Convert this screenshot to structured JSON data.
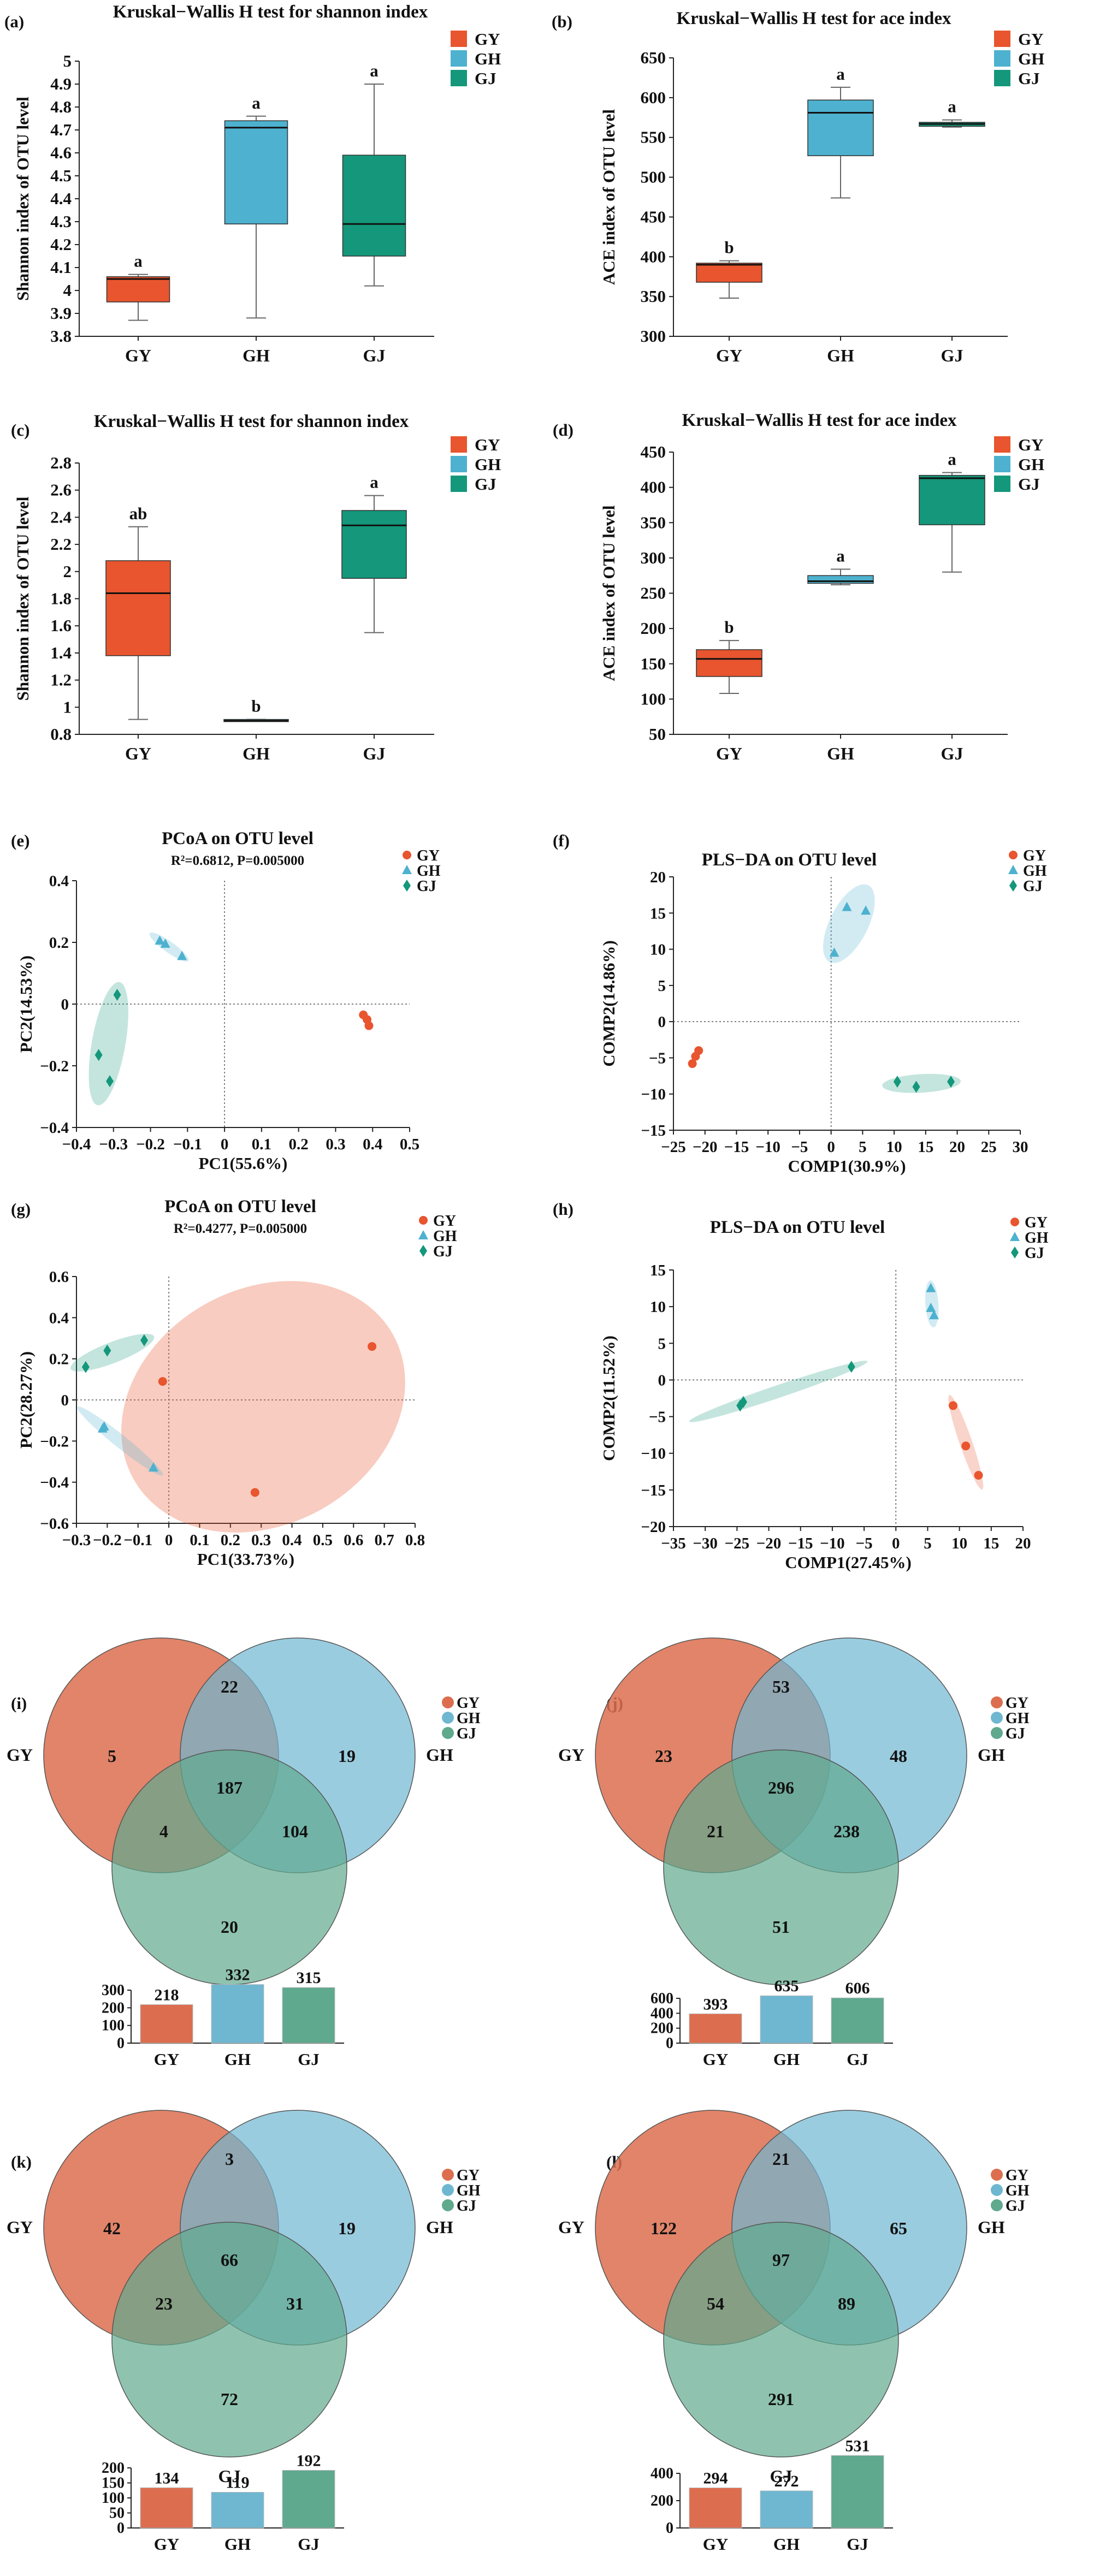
{
  "colors": {
    "GY": "#e8552e",
    "GH": "#4db1cf",
    "GJ": "#14977a"
  },
  "venn_colors": {
    "GY": "#dc6e4f",
    "GH": "#6fb7d1",
    "GJ": "#5fa98e"
  },
  "chart_data": [
    {
      "type": "box",
      "label": "(a)",
      "title": "Kruskal−Wallis H test for shannon index",
      "ylabel": "Shannon index of OTU level",
      "ylim": [
        3.8,
        5
      ],
      "ticks": [
        3.8,
        3.9,
        4,
        4.1,
        4.2,
        4.3,
        4.4,
        4.5,
        4.6,
        4.7,
        4.8,
        4.9,
        5
      ],
      "tick_labels": [
        "3.8",
        "3.9",
        "4",
        "4.1",
        "4.2",
        "4.3",
        "4.4",
        "4.5",
        "4.6",
        "4.7",
        "4.8",
        "4.9",
        "5"
      ],
      "legend": [
        "GY",
        "GH",
        "GJ"
      ],
      "groups": [
        {
          "name": "GY",
          "min": 3.87,
          "q1": 3.95,
          "median": 4.05,
          "q3": 4.06,
          "max": 4.07,
          "letter": "a"
        },
        {
          "name": "GH",
          "min": 3.88,
          "q1": 4.29,
          "median": 4.71,
          "q3": 4.74,
          "max": 4.76,
          "letter": "a"
        },
        {
          "name": "GJ",
          "min": 4.02,
          "q1": 4.15,
          "median": 4.29,
          "q3": 4.59,
          "max": 4.9,
          "letter": "a"
        }
      ]
    },
    {
      "type": "box",
      "label": "(b)",
      "title": "Kruskal−Wallis H test for ace index",
      "ylabel": "ACE index of OTU level",
      "ylim": [
        300,
        650
      ],
      "ticks": [
        300,
        350,
        400,
        450,
        500,
        550,
        600,
        650
      ],
      "tick_labels": [
        "300",
        "350",
        "400",
        "450",
        "500",
        "550",
        "600",
        "650"
      ],
      "legend": [
        "GY",
        "GH",
        "GJ"
      ],
      "groups": [
        {
          "name": "GY",
          "min": 348,
          "q1": 368,
          "median": 390,
          "q3": 392,
          "max": 395,
          "letter": "b"
        },
        {
          "name": "GH",
          "min": 474,
          "q1": 527,
          "median": 581,
          "q3": 597,
          "max": 613,
          "letter": "a"
        },
        {
          "name": "GJ",
          "min": 563,
          "q1": 564,
          "median": 567,
          "q3": 569,
          "max": 572,
          "letter": "a"
        }
      ]
    },
    {
      "type": "box",
      "label": "(c)",
      "title": "Kruskal−Wallis H test for shannon index",
      "ylabel": "Shannon index of OTU level",
      "ylim": [
        0.8,
        2.8
      ],
      "ticks": [
        0.8,
        1,
        1.2,
        1.4,
        1.6,
        1.8,
        2,
        2.2,
        2.4,
        2.6,
        2.8
      ],
      "tick_labels": [
        "0.8",
        "1",
        "1.2",
        "1.4",
        "1.6",
        "1.8",
        "2",
        "2.2",
        "2.4",
        "2.6",
        "2.8"
      ],
      "legend": [
        "GY",
        "GH",
        "GJ"
      ],
      "groups": [
        {
          "name": "GY",
          "min": 0.91,
          "q1": 1.38,
          "median": 1.84,
          "q3": 2.08,
          "max": 2.33,
          "letter": "ab"
        },
        {
          "name": "GH",
          "min": 0.9,
          "q1": 0.9,
          "median": 0.9,
          "q3": 0.91,
          "max": 0.91,
          "letter": "b"
        },
        {
          "name": "GJ",
          "min": 1.55,
          "q1": 1.95,
          "median": 2.34,
          "q3": 2.45,
          "max": 2.56,
          "letter": "a"
        }
      ]
    },
    {
      "type": "box",
      "label": "(d)",
      "title": "Kruskal−Wallis H test for ace index",
      "ylabel": "ACE index of OTU level",
      "ylim": [
        50,
        450
      ],
      "ticks": [
        50,
        100,
        150,
        200,
        250,
        300,
        350,
        400,
        450
      ],
      "tick_labels": [
        "50",
        "100",
        "150",
        "200",
        "250",
        "300",
        "350",
        "400",
        "450"
      ],
      "legend": [
        "GY",
        "GH",
        "GJ"
      ],
      "groups": [
        {
          "name": "GY",
          "min": 108,
          "q1": 132,
          "median": 157,
          "q3": 170,
          "max": 183,
          "letter": "b"
        },
        {
          "name": "GH",
          "min": 262,
          "q1": 264,
          "median": 267,
          "q3": 275,
          "max": 284,
          "letter": "a"
        },
        {
          "name": "GJ",
          "min": 280,
          "q1": 347,
          "median": 413,
          "q3": 417,
          "max": 421,
          "letter": "a"
        }
      ]
    },
    {
      "type": "scatter",
      "label": "(e)",
      "title": "PCoA on OTU level",
      "subtitle": "R²=0.6812, P=0.005000",
      "xlabel": "PC1(55.6%)",
      "ylabel": "PC2(14.53%)",
      "xlim": [
        -0.4,
        0.5
      ],
      "ylim": [
        -0.4,
        0.4
      ],
      "xticks": [
        -0.4,
        -0.3,
        -0.2,
        -0.1,
        0,
        0.1,
        0.2,
        0.3,
        0.4,
        0.5
      ],
      "xtick_labels": [
        "−0.4",
        "−0.3",
        "−0.2",
        "−0.1",
        "0",
        "0.1",
        "0.2",
        "0.3",
        "0.4",
        "0.5"
      ],
      "yticks": [
        -0.4,
        -0.2,
        0,
        0.2,
        0.4
      ],
      "ytick_labels": [
        "−0.4",
        "−0.2",
        "0",
        "0.2",
        "0.4"
      ],
      "legend": [
        "GY",
        "GH",
        "GJ"
      ],
      "series": [
        {
          "name": "GY",
          "points": [
            [
              0.375,
              -0.035
            ],
            [
              0.385,
              -0.05
            ],
            [
              0.39,
              -0.07
            ]
          ],
          "ellipse": false
        },
        {
          "name": "GH",
          "points": [
            [
              -0.175,
              0.205
            ],
            [
              -0.16,
              0.195
            ],
            [
              -0.115,
              0.155
            ]
          ],
          "ellipse": true
        },
        {
          "name": "GJ",
          "points": [
            [
              -0.29,
              0.03
            ],
            [
              -0.34,
              -0.165
            ],
            [
              -0.31,
              -0.25
            ]
          ],
          "ellipse": true
        }
      ]
    },
    {
      "type": "scatter",
      "label": "(f)",
      "title": "PLS−DA on OTU level",
      "xlabel": "COMP1(30.9%)",
      "ylabel": "COMP2(14.86%)",
      "xlim": [
        -25,
        30
      ],
      "ylim": [
        -15,
        20
      ],
      "xticks": [
        -25,
        -20,
        -15,
        -10,
        -5,
        0,
        5,
        10,
        15,
        20,
        25,
        30
      ],
      "xtick_labels": [
        "−25",
        "−20",
        "−15",
        "−10",
        "−5",
        "0",
        "5",
        "10",
        "15",
        "20",
        "25",
        "30"
      ],
      "yticks": [
        -15,
        -10,
        -5,
        0,
        5,
        10,
        15,
        20
      ],
      "ytick_labels": [
        "−15",
        "−10",
        "−5",
        "0",
        "5",
        "10",
        "15",
        "20"
      ],
      "legend": [
        "GY",
        "GH",
        "GJ"
      ],
      "series": [
        {
          "name": "GY",
          "points": [
            [
              -21,
              -4
            ],
            [
              -21.5,
              -4.8
            ],
            [
              -22,
              -5.8
            ]
          ],
          "ellipse": false
        },
        {
          "name": "GH",
          "points": [
            [
              2.5,
              15.8
            ],
            [
              5.5,
              15.3
            ],
            [
              0.5,
              9.5
            ]
          ],
          "ellipse": true
        },
        {
          "name": "GJ",
          "points": [
            [
              10.5,
              -8.3
            ],
            [
              13.5,
              -9
            ],
            [
              19,
              -8.3
            ]
          ],
          "ellipse": true
        }
      ]
    },
    {
      "type": "scatter",
      "label": "(g)",
      "title": "PCoA on OTU level",
      "subtitle": "R²=0.4277, P=0.005000",
      "xlabel": "PC1(33.73%)",
      "ylabel": "PC2(28.27%)",
      "xlim": [
        -0.3,
        0.8
      ],
      "ylim": [
        -0.6,
        0.6
      ],
      "xticks": [
        -0.3,
        -0.2,
        -0.1,
        0,
        0.1,
        0.2,
        0.3,
        0.4,
        0.5,
        0.6,
        0.7,
        0.8
      ],
      "xtick_labels": [
        "−0.3",
        "−0.2",
        "−0.1",
        "0",
        "0.1",
        "0.2",
        "0.3",
        "0.4",
        "0.5",
        "0.6",
        "0.7",
        "0.8"
      ],
      "yticks": [
        -0.6,
        -0.4,
        -0.2,
        0,
        0.2,
        0.4,
        0.6
      ],
      "ytick_labels": [
        "−0.6",
        "−0.4",
        "−0.2",
        "0",
        "0.2",
        "0.4",
        "0.6"
      ],
      "legend": [
        "GY",
        "GH",
        "GJ"
      ],
      "series": [
        {
          "name": "GY",
          "points": [
            [
              -0.02,
              0.09
            ],
            [
              0.66,
              0.26
            ],
            [
              0.28,
              -0.45
            ]
          ],
          "ellipse": true
        },
        {
          "name": "GH",
          "points": [
            [
              -0.21,
              -0.13
            ],
            [
              -0.215,
              -0.14
            ],
            [
              -0.05,
              -0.33
            ]
          ],
          "ellipse": true
        },
        {
          "name": "GJ",
          "points": [
            [
              -0.27,
              0.16
            ],
            [
              -0.2,
              0.24
            ],
            [
              -0.08,
              0.29
            ]
          ],
          "ellipse": true
        }
      ]
    },
    {
      "type": "scatter",
      "label": "(h)",
      "title": "PLS−DA on OTU level",
      "xlabel": "COMP1(27.45%)",
      "ylabel": "COMP2(11.52%)",
      "xlim": [
        -35,
        20
      ],
      "ylim": [
        -20,
        15
      ],
      "xticks": [
        -35,
        -30,
        -25,
        -20,
        -15,
        -10,
        -5,
        0,
        5,
        10,
        15,
        20
      ],
      "xtick_labels": [
        "−35",
        "−30",
        "−25",
        "−20",
        "−15",
        "−10",
        "−5",
        "0",
        "5",
        "10",
        "15",
        "20"
      ],
      "yticks": [
        -20,
        -15,
        -10,
        -5,
        0,
        5,
        10,
        15
      ],
      "ytick_labels": [
        "−20",
        "−15",
        "−10",
        "−5",
        "0",
        "5",
        "10",
        "15"
      ],
      "legend": [
        "GY",
        "GH",
        "GJ"
      ],
      "series": [
        {
          "name": "GY",
          "points": [
            [
              9,
              -3.5
            ],
            [
              11,
              -9
            ],
            [
              13,
              -13
            ]
          ],
          "ellipse": true
        },
        {
          "name": "GH",
          "points": [
            [
              5.5,
              12.5
            ],
            [
              5.5,
              9.8
            ],
            [
              6,
              8.8
            ]
          ],
          "ellipse": true
        },
        {
          "name": "GJ",
          "points": [
            [
              -24.5,
              -3.5
            ],
            [
              -24,
              -3
            ],
            [
              -7,
              1.8
            ]
          ],
          "ellipse": true
        }
      ]
    },
    {
      "type": "venn",
      "label": "(i)",
      "legend": [
        "GY",
        "GH",
        "GJ"
      ],
      "names": [
        "GY",
        "GH",
        "GJ"
      ],
      "regions": {
        "GY_only": "5",
        "GH_only": "19",
        "GJ_only": "20",
        "GY_GH": "22",
        "GY_GJ": "4",
        "GH_GJ": "104",
        "all": "187"
      },
      "bar": {
        "categories": [
          "GY",
          "GH",
          "GJ"
        ],
        "values": [
          218,
          332,
          315
        ],
        "ylim": [
          0,
          300
        ],
        "ticks": [
          0,
          100,
          200,
          300
        ],
        "tick_labels": [
          "0",
          "100",
          "200",
          "300"
        ]
      }
    },
    {
      "type": "venn",
      "label": "(j)",
      "legend": [
        "GY",
        "GH",
        "GJ"
      ],
      "names": [
        "GY",
        "GH",
        "GJ"
      ],
      "regions": {
        "GY_only": "23",
        "GH_only": "48",
        "GJ_only": "51",
        "GY_GH": "53",
        "GY_GJ": "21",
        "GH_GJ": "238",
        "all": "296"
      },
      "bar": {
        "categories": [
          "GY",
          "GH",
          "GJ"
        ],
        "values": [
          393,
          635,
          606
        ],
        "ylim": [
          0,
          600
        ],
        "ticks": [
          0,
          200,
          400,
          600
        ],
        "tick_labels": [
          "0",
          "200",
          "400",
          "600"
        ]
      }
    },
    {
      "type": "venn",
      "label": "(k)",
      "legend": [
        "GY",
        "GH",
        "GJ"
      ],
      "names": [
        "GY",
        "GH",
        "GJ"
      ],
      "regions": {
        "GY_only": "42",
        "GH_only": "19",
        "GJ_only": "72",
        "GY_GH": "3",
        "GY_GJ": "23",
        "GH_GJ": "31",
        "all": "66"
      },
      "bar": {
        "categories": [
          "GY",
          "GH",
          "GJ"
        ],
        "values": [
          134,
          119,
          192
        ],
        "ylim": [
          0,
          200
        ],
        "ticks": [
          0,
          50,
          100,
          150,
          200
        ],
        "tick_labels": [
          "0",
          "50",
          "100",
          "150",
          "200"
        ]
      }
    },
    {
      "type": "venn",
      "label": "(l)",
      "legend": [
        "GY",
        "GH",
        "GJ"
      ],
      "names": [
        "GY",
        "GH",
        "GJ"
      ],
      "regions": {
        "GY_only": "122",
        "GH_only": "65",
        "GJ_only": "291",
        "GY_GH": "21",
        "GY_GJ": "54",
        "GH_GJ": "89",
        "all": "97"
      },
      "bar": {
        "categories": [
          "GY",
          "GH",
          "GJ"
        ],
        "values": [
          294,
          272,
          531
        ],
        "ylim": [
          0,
          400
        ],
        "ticks": [
          0,
          200,
          400
        ],
        "tick_labels": [
          "0",
          "200",
          "400"
        ]
      }
    }
  ]
}
